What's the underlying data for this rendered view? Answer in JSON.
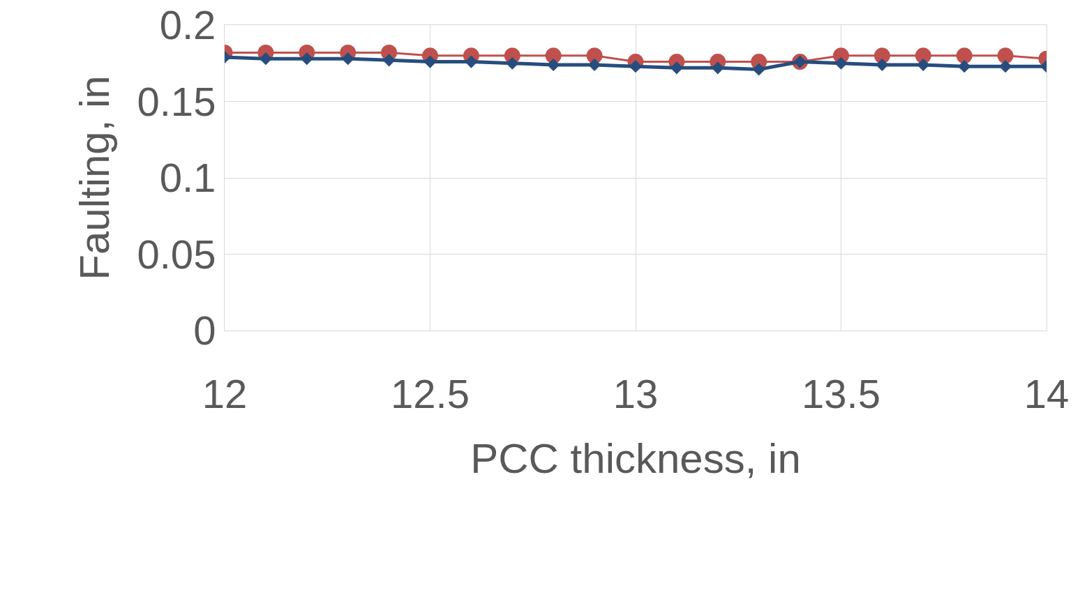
{
  "chart_data": {
    "type": "line",
    "xlabel": "PCC thickness, in",
    "ylabel": "Faulting, in",
    "x": [
      12,
      12.1,
      12.2,
      12.3,
      12.4,
      12.5,
      12.6,
      12.7,
      12.8,
      12.9,
      13,
      13.1,
      13.2,
      13.3,
      13.4,
      13.5,
      13.6,
      13.7,
      13.8,
      13.9,
      14
    ],
    "series": [
      {
        "color": "#264d7e",
        "marker": "diamond",
        "values": [
          0.179,
          0.178,
          0.178,
          0.178,
          0.177,
          0.176,
          0.176,
          0.175,
          0.174,
          0.174,
          0.173,
          0.172,
          0.172,
          0.171,
          0.176,
          0.175,
          0.174,
          0.174,
          0.173,
          0.173,
          0.173
        ]
      },
      {
        "color": "#c0504d",
        "marker": "circle",
        "values": [
          0.182,
          0.182,
          0.182,
          0.182,
          0.182,
          0.18,
          0.18,
          0.18,
          0.18,
          0.18,
          0.176,
          0.176,
          0.176,
          0.176,
          0.176,
          0.18,
          0.18,
          0.18,
          0.18,
          0.18,
          0.178
        ]
      }
    ],
    "xlim": [
      12,
      14
    ],
    "xticks": [
      12,
      12.5,
      13,
      13.5,
      14
    ],
    "ylim": [
      0,
      0.2
    ],
    "yticks": [
      0,
      0.05,
      0.1,
      0.15,
      0.2
    ],
    "grid": true
  }
}
